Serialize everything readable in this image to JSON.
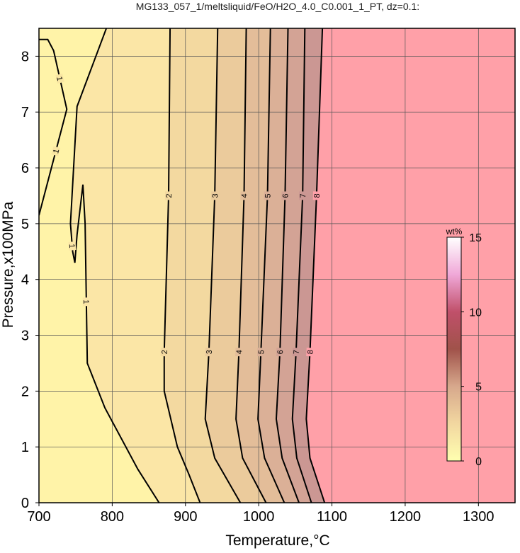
{
  "chart_data": {
    "type": "contour",
    "title": "MG133_057_1/meltsliquid/FeO/H2O_4.0_C0.001_1_PT, dz=0.1:",
    "x_label": "Temperature,°C",
    "y_label": "Pressure,x100MPa",
    "xlim": [
      700,
      1350
    ],
    "ylim": [
      0,
      8.5
    ],
    "xticks": [
      700,
      800,
      900,
      1000,
      1100,
      1200,
      1300
    ],
    "yticks": [
      0,
      1,
      2,
      3,
      4,
      5,
      6,
      7,
      8
    ],
    "grid": true,
    "background_color": "#fff3a8",
    "contours": [
      {
        "level": 1,
        "color": "#f9e6a2",
        "x": [
          700,
          712,
          720,
          738,
          700
        ],
        "y": [
          8.3,
          8.3,
          8.1,
          7.05,
          5.15
        ]
      },
      {
        "level": 1,
        "color": "#fbe6a6",
        "x": [
          792,
          752,
          743,
          746,
          749,
          752,
          760,
          763,
          766,
          790,
          835,
          864
        ],
        "y": [
          8.5,
          7.1,
          5.0,
          4.5,
          4.3,
          4.8,
          5.7,
          5.0,
          2.5,
          1.7,
          0.6,
          0
        ]
      },
      {
        "level": 2,
        "color": "#f3d9a0",
        "x": [
          879,
          877,
          871,
          871,
          889,
          905,
          920
        ],
        "y": [
          8.5,
          5.5,
          2.7,
          2.0,
          1.0,
          0.5,
          0
        ]
      },
      {
        "level": 3,
        "color": "#ebcb9c",
        "x": [
          944,
          940,
          932,
          927,
          940,
          975
        ],
        "y": [
          8.5,
          5.5,
          2.7,
          1.5,
          0.8,
          0
        ]
      },
      {
        "level": 4,
        "color": "#e3bd99",
        "x": [
          983,
          980,
          973,
          969,
          978,
          1010
        ],
        "y": [
          8.5,
          5.5,
          2.7,
          1.5,
          0.8,
          0
        ]
      },
      {
        "level": 5,
        "color": "#dbb097",
        "x": [
          1016,
          1012,
          1003,
          999,
          1008,
          1035
        ],
        "y": [
          8.5,
          5.5,
          2.7,
          1.5,
          0.8,
          0
        ]
      },
      {
        "level": 6,
        "color": "#d3a395",
        "x": [
          1040,
          1036,
          1029,
          1024,
          1032,
          1055
        ],
        "y": [
          8.5,
          5.5,
          2.7,
          1.5,
          0.8,
          0
        ]
      },
      {
        "level": 7,
        "color": "#cb9793",
        "x": [
          1063,
          1060,
          1051,
          1046,
          1052,
          1072
        ],
        "y": [
          8.5,
          5.5,
          2.7,
          1.5,
          0.8,
          0
        ]
      },
      {
        "level": 8,
        "color": "#ffa0a8",
        "x": [
          1087,
          1079,
          1070,
          1065,
          1070,
          1090
        ],
        "y": [
          8.5,
          5.5,
          2.7,
          1.5,
          0.8,
          0
        ]
      }
    ],
    "colorbar": {
      "label": "wt%",
      "lim": [
        0,
        15
      ],
      "ticks": [
        0,
        5,
        10,
        15
      ],
      "colors": [
        "#ffffb0",
        "#f2d7a0",
        "#d7a88c",
        "#a0524a",
        "#c0506a",
        "#f0a8d8",
        "#ffffff"
      ]
    }
  }
}
